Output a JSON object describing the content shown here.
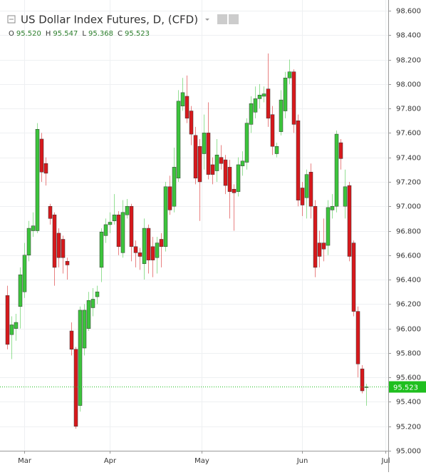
{
  "chart_data": {
    "type": "candlestick",
    "title": "US Dollar Index Futures, D, (CFD)",
    "ohlc_legend": [
      {
        "key": "O",
        "value": "95.520"
      },
      {
        "key": "H",
        "value": "95.547"
      },
      {
        "key": "L",
        "value": "95.368"
      },
      {
        "key": "C",
        "value": "95.523"
      }
    ],
    "up_color": "#3cc43c",
    "down_color": "#d7191c",
    "last_color": "#1fbf1f",
    "open": [
      96.27,
      95.95,
      96.0,
      96.18,
      96.3,
      96.6,
      96.8,
      96.8,
      97.55,
      97.35,
      97.0,
      96.93,
      96.78,
      96.73,
      96.55,
      95.98,
      95.83,
      95.37,
      95.84,
      96.0,
      96.17,
      96.26,
      96.5,
      96.76,
      96.85,
      96.88,
      96.93,
      96.62,
      96.93,
      97.0,
      96.67,
      96.62,
      96.53,
      96.82,
      96.67,
      96.58,
      96.73,
      96.67,
      97.16,
      97.0,
      97.23,
      97.82,
      97.9,
      97.78,
      97.58,
      97.49,
      97.43,
      97.6,
      97.34,
      97.29,
      97.4,
      97.38,
      97.32,
      97.14,
      97.12,
      97.33,
      97.36,
      97.67,
      97.77,
      97.88,
      97.9,
      97.96,
      97.75,
      97.43,
      97.61,
      97.78,
      98.05,
      98.1,
      97.7,
      97.15,
      97.07,
      97.28,
      97.0,
      96.7,
      96.7,
      96.68,
      96.97,
      97.0,
      97.52,
      97.0,
      97.17,
      96.7,
      96.14,
      95.67,
      95.52
    ],
    "high": [
      96.35,
      96.1,
      96.12,
      96.5,
      96.7,
      96.88,
      96.95,
      97.68,
      97.6,
      97.4,
      97.02,
      96.95,
      96.82,
      96.76,
      96.58,
      96.05,
      95.85,
      96.18,
      96.2,
      96.3,
      96.33,
      96.35,
      96.82,
      96.9,
      96.95,
      97.1,
      96.96,
      97.05,
      97.06,
      97.02,
      96.72,
      96.66,
      96.9,
      96.85,
      96.75,
      96.75,
      96.78,
      97.2,
      97.25,
      97.48,
      97.95,
      98.05,
      98.07,
      97.82,
      97.65,
      97.55,
      97.75,
      97.85,
      97.4,
      97.55,
      97.5,
      97.42,
      97.38,
      97.18,
      97.4,
      97.45,
      97.72,
      97.9,
      97.98,
      98.0,
      97.98,
      98.25,
      97.82,
      97.52,
      97.95,
      98.1,
      98.2,
      98.12,
      97.75,
      97.2,
      97.3,
      97.35,
      97.05,
      96.8,
      96.9,
      97.05,
      97.1,
      97.62,
      97.55,
      97.3,
      97.2,
      96.72,
      96.18,
      95.7,
      95.547
    ],
    "low": [
      95.83,
      95.75,
      95.9,
      96.0,
      96.25,
      96.55,
      96.75,
      96.78,
      97.2,
      97.17,
      96.85,
      96.35,
      96.5,
      96.45,
      96.4,
      95.78,
      95.18,
      95.32,
      95.78,
      95.98,
      96.1,
      96.2,
      96.38,
      96.7,
      96.78,
      96.85,
      96.6,
      96.58,
      96.9,
      96.55,
      96.5,
      96.48,
      96.4,
      96.45,
      96.42,
      96.45,
      96.5,
      96.63,
      96.93,
      96.95,
      97.2,
      97.78,
      97.68,
      97.5,
      97.18,
      96.88,
      97.3,
      97.22,
      97.18,
      97.2,
      97.3,
      97.1,
      96.9,
      96.8,
      97.08,
      97.25,
      97.3,
      97.6,
      97.72,
      97.8,
      97.85,
      97.65,
      97.42,
      97.4,
      97.58,
      97.72,
      98.0,
      97.6,
      97.0,
      96.92,
      96.9,
      96.9,
      96.42,
      96.5,
      96.55,
      96.6,
      96.9,
      96.95,
      97.3,
      96.9,
      96.55,
      96.1,
      95.6,
      95.47,
      95.368
    ],
    "close": [
      95.87,
      96.03,
      96.05,
      96.44,
      96.6,
      96.82,
      96.84,
      97.63,
      97.28,
      97.27,
      96.9,
      96.5,
      96.58,
      96.58,
      96.52,
      95.83,
      95.2,
      96.15,
      96.15,
      96.23,
      96.24,
      96.3,
      96.79,
      96.85,
      96.87,
      96.93,
      96.67,
      96.95,
      97.0,
      96.67,
      96.62,
      96.59,
      96.82,
      96.56,
      96.56,
      96.7,
      96.67,
      97.16,
      96.97,
      97.32,
      97.86,
      97.93,
      97.72,
      97.59,
      97.23,
      97.2,
      97.6,
      97.26,
      97.26,
      97.42,
      97.35,
      97.17,
      97.12,
      97.11,
      97.34,
      97.37,
      97.68,
      97.84,
      97.88,
      97.91,
      97.92,
      97.72,
      97.49,
      97.49,
      97.87,
      98.05,
      98.1,
      97.67,
      97.05,
      97.01,
      97.26,
      97.0,
      96.5,
      96.59,
      96.65,
      96.99,
      97.0,
      97.59,
      97.39,
      97.16,
      96.59,
      96.14,
      95.71,
      95.49,
      95.523
    ],
    "last_price": {
      "value": 95.523,
      "label": "95.523"
    },
    "ylim": [
      95.0,
      98.6
    ],
    "yticks": [
      {
        "value": 95.0,
        "label": "95.000"
      },
      {
        "value": 95.2,
        "label": "95.200"
      },
      {
        "value": 95.4,
        "label": "95.400"
      },
      {
        "value": 95.6,
        "label": "95.600"
      },
      {
        "value": 95.8,
        "label": "95.800"
      },
      {
        "value": 96.0,
        "label": "96.000"
      },
      {
        "value": 96.2,
        "label": "96.200"
      },
      {
        "value": 96.4,
        "label": "96.400"
      },
      {
        "value": 96.6,
        "label": "96.600"
      },
      {
        "value": 96.8,
        "label": "96.800"
      },
      {
        "value": 97.0,
        "label": "97.000"
      },
      {
        "value": 97.2,
        "label": "97.200"
      },
      {
        "value": 97.4,
        "label": "97.400"
      },
      {
        "value": 97.6,
        "label": "97.600"
      },
      {
        "value": 97.8,
        "label": "97.800"
      },
      {
        "value": 98.0,
        "label": "98.000"
      },
      {
        "value": 98.2,
        "label": "98.200"
      },
      {
        "value": 98.4,
        "label": "98.400"
      },
      {
        "value": 98.6,
        "label": "98.600"
      }
    ],
    "xticks": [
      {
        "value": 4,
        "label": "Mar"
      },
      {
        "value": 24,
        "label": "Apr"
      },
      {
        "value": 45.5,
        "label": "May"
      },
      {
        "value": 69,
        "label": "Jun"
      },
      {
        "value": 88.5,
        "label": "Jul"
      }
    ],
    "grid": true
  }
}
